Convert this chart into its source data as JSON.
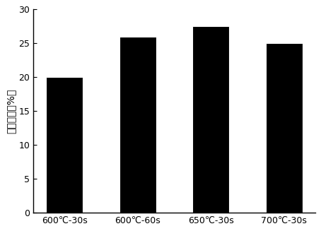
{
  "categories": [
    "600℃-30s",
    "600℃-60s",
    "650℃-30s",
    "700℃-30s"
  ],
  "values": [
    20.0,
    26.0,
    27.5,
    25.0
  ],
  "bar_color": "#000000",
  "bar_edgecolor": "#ffffff",
  "ylabel": "芳烃收率（%）",
  "ylim": [
    0,
    30
  ],
  "yticks": [
    0,
    5,
    10,
    15,
    20,
    25,
    30
  ],
  "background_color": "#ffffff",
  "bar_width": 0.5,
  "linewidth": 0.8,
  "tick_fontsize": 9,
  "ylabel_fontsize": 10
}
